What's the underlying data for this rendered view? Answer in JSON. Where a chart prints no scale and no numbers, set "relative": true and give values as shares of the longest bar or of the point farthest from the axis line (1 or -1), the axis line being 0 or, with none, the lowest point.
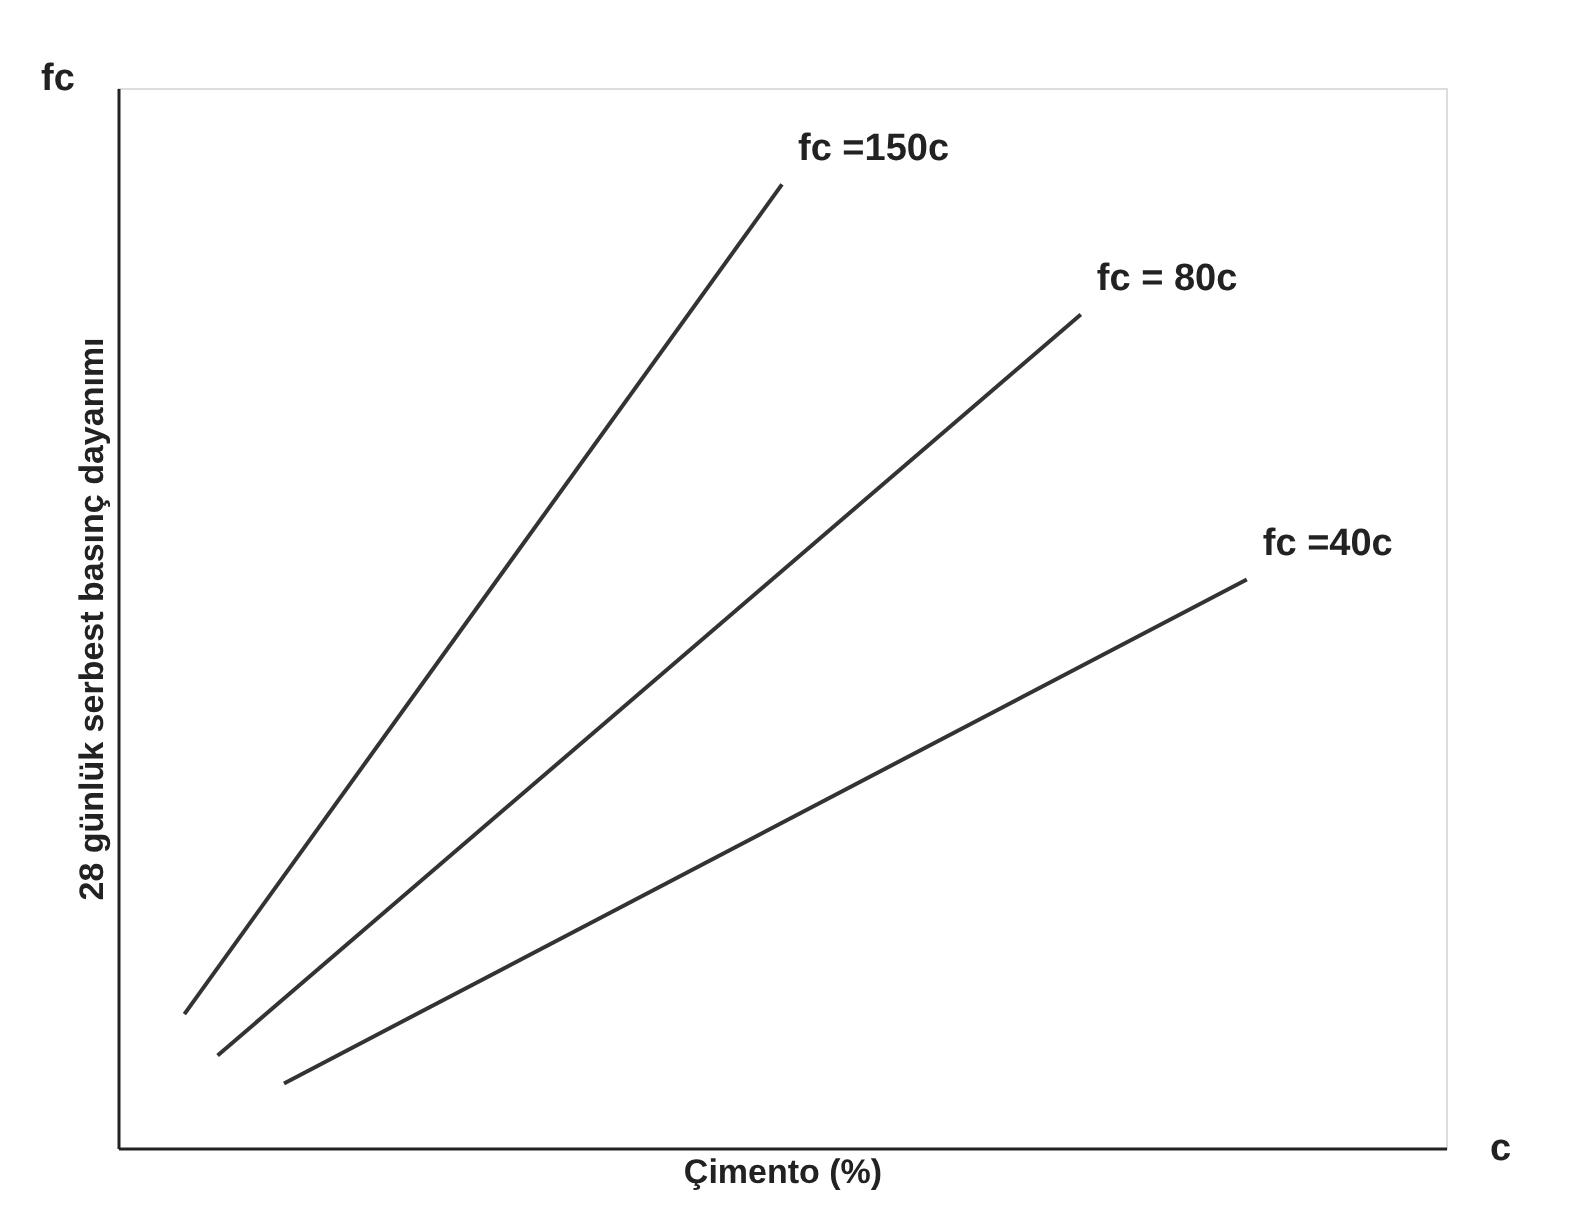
{
  "chart_data": {
    "type": "line",
    "relative": true,
    "xlabel": "Çimento (%)",
    "ylabel": "28 günlük serbest basınç dayanımı",
    "annotations": [
      "fc",
      "c"
    ],
    "tick_labels": false,
    "grid": false,
    "marker": "none",
    "line_style": "solid",
    "categories": [
      null,
      null,
      null,
      null,
      null,
      null,
      null,
      null,
      null,
      null,
      null,
      null,
      null,
      null,
      null,
      null,
      null,
      null,
      null,
      null,
      null,
      null,
      null,
      null,
      null,
      null,
      null,
      null,
      null,
      null,
      null,
      null,
      null,
      null,
      null,
      null,
      null,
      null,
      null,
      null
    ],
    "series": [
      {
        "name": "fc =150c",
        "color": "#333333",
        "values": [
          null,
          null,
          0.139,
          null,
          null,
          null,
          null,
          null,
          null,
          null,
          null,
          null,
          null,
          null,
          null,
          null,
          null,
          null,
          null,
          null,
          1,
          null,
          null,
          null,
          null,
          null,
          null,
          null,
          null,
          null,
          null,
          null,
          null,
          null,
          null,
          null,
          null,
          null,
          null,
          null
        ]
      },
      {
        "name": "fc = 80c",
        "color": "#333333",
        "values": [
          null,
          null,
          null,
          0.096,
          null,
          null,
          null,
          null,
          null,
          null,
          null,
          null,
          null,
          null,
          null,
          null,
          null,
          null,
          null,
          null,
          null,
          null,
          null,
          null,
          null,
          null,
          null,
          null,
          null,
          0.865,
          null,
          null,
          null,
          null,
          null,
          null,
          null,
          null,
          null,
          null
        ]
      },
      {
        "name": "fc =40c",
        "color": "#333333",
        "values": [
          null,
          null,
          null,
          null,
          null,
          0.067,
          null,
          null,
          null,
          null,
          null,
          null,
          null,
          null,
          null,
          null,
          null,
          null,
          null,
          null,
          null,
          null,
          null,
          null,
          null,
          null,
          null,
          null,
          null,
          null,
          null,
          null,
          null,
          null,
          0.59,
          null,
          null,
          null,
          null,
          null
        ]
      }
    ]
  }
}
